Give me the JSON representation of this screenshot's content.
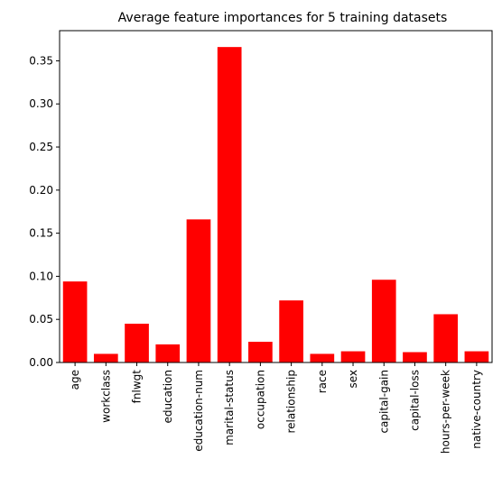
{
  "chart_data": {
    "type": "bar",
    "title": "Average feature importances for 5 training datasets",
    "xlabel": "",
    "ylabel": "",
    "categories": [
      "age",
      "workclass",
      "fnlwgt",
      "education",
      "education-num",
      "marital-status",
      "occupation",
      "relationship",
      "race",
      "sex",
      "capital-gain",
      "capital-loss",
      "hours-per-week",
      "native-country"
    ],
    "values": [
      0.094,
      0.01,
      0.045,
      0.021,
      0.166,
      0.366,
      0.024,
      0.072,
      0.01,
      0.013,
      0.096,
      0.012,
      0.056,
      0.013
    ],
    "ylim": [
      0,
      0.385
    ],
    "yticks": [
      "0.00",
      "0.05",
      "0.10",
      "0.15",
      "0.20",
      "0.25",
      "0.30",
      "0.35"
    ],
    "bar_color": "#ff0000",
    "grid": false,
    "legend": false
  }
}
